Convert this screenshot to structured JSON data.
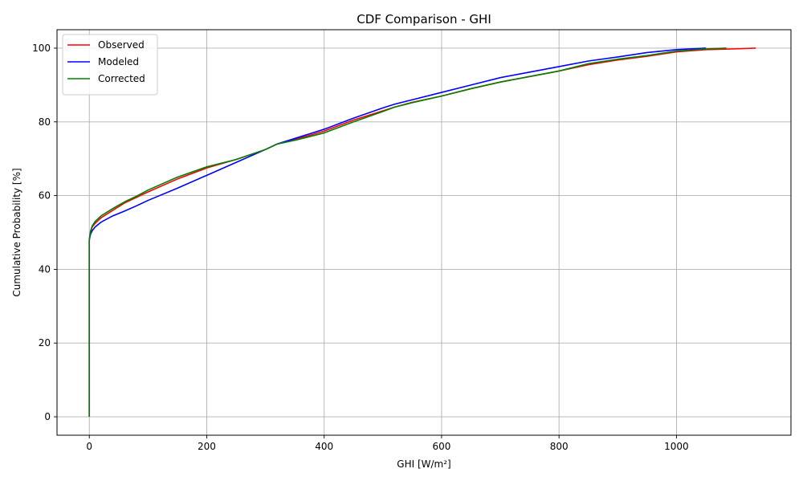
{
  "chart_data": {
    "type": "line",
    "title": "CDF Comparison - GHI",
    "xlabel": "GHI [W/m²]",
    "ylabel": "Cumulative Probability [%]",
    "xlim": [
      -55,
      1195
    ],
    "ylim": [
      -5,
      105
    ],
    "xticks": [
      0,
      200,
      400,
      600,
      800,
      1000
    ],
    "yticks": [
      0,
      20,
      40,
      60,
      80,
      100
    ],
    "grid": true,
    "legend_position": "top-left",
    "series": [
      {
        "name": "Observed",
        "color": "#ff0000",
        "x": [
          0,
          0,
          0,
          2,
          5,
          10,
          20,
          40,
          60,
          80,
          100,
          150,
          200,
          250,
          300,
          320,
          350,
          400,
          450,
          500,
          520,
          550,
          600,
          650,
          700,
          750,
          800,
          850,
          900,
          950,
          1000,
          1050,
          1100,
          1135
        ],
        "y": [
          0,
          20,
          48,
          50,
          51.5,
          52.5,
          54,
          56,
          58,
          59.5,
          61,
          64.5,
          67.5,
          69.8,
          72.5,
          74,
          75.2,
          77.5,
          80.5,
          83,
          84,
          85.3,
          87,
          89,
          90.8,
          92.3,
          93.8,
          95.5,
          96.8,
          97.8,
          99,
          99.6,
          99.8,
          100
        ]
      },
      {
        "name": "Modeled",
        "color": "#0000ff",
        "x": [
          0,
          0,
          0,
          2,
          5,
          10,
          20,
          40,
          60,
          80,
          100,
          150,
          200,
          250,
          300,
          320,
          350,
          400,
          450,
          500,
          520,
          550,
          600,
          650,
          700,
          750,
          800,
          850,
          900,
          950,
          1000,
          1050
        ],
        "y": [
          0,
          20,
          48,
          49.5,
          50.5,
          51.5,
          52.8,
          54.5,
          55.8,
          57.2,
          58.7,
          62,
          65.5,
          69,
          72.5,
          74,
          75.5,
          78,
          81,
          83.8,
          84.8,
          86,
          88,
          90,
          92,
          93.5,
          95,
          96.5,
          97.6,
          98.8,
          99.6,
          100
        ]
      },
      {
        "name": "Corrected",
        "color": "#008000",
        "x": [
          0,
          0,
          0,
          2,
          5,
          10,
          20,
          40,
          60,
          80,
          100,
          150,
          200,
          250,
          300,
          320,
          350,
          400,
          450,
          500,
          520,
          550,
          600,
          650,
          700,
          750,
          800,
          850,
          900,
          950,
          1000,
          1050,
          1085
        ],
        "y": [
          0,
          20,
          48,
          50.3,
          51.8,
          53,
          54.5,
          56.5,
          58.3,
          59.8,
          61.5,
          65,
          67.8,
          69.8,
          72.5,
          74,
          75,
          77,
          80,
          82.8,
          84,
          85.2,
          87,
          89,
          90.8,
          92.3,
          93.8,
          95.8,
          97,
          98,
          99.2,
          99.8,
          100
        ]
      }
    ]
  }
}
